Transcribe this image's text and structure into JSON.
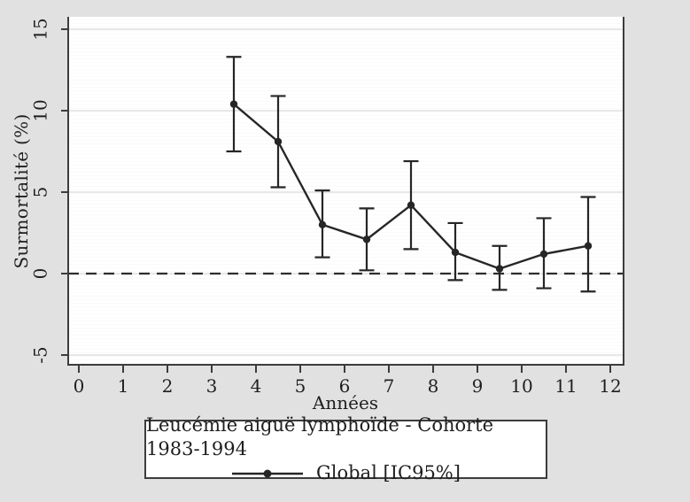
{
  "figure": {
    "background": "#e1e1e1"
  },
  "chart_data": {
    "type": "line",
    "title": "",
    "xlabel": "Années",
    "ylabel": "Surmortalité (%)",
    "x_ticks": [
      0,
      1,
      2,
      3,
      4,
      5,
      6,
      7,
      8,
      9,
      10,
      11,
      12
    ],
    "y_ticks": [
      -5,
      0,
      5,
      10,
      15
    ],
    "xlim": [
      -0.25,
      12.3
    ],
    "ylim": [
      -5.7,
      15.8
    ],
    "grid": true,
    "reference_line_y": 0,
    "legend": {
      "position": "bottom",
      "title": "Leucémie aiguë lymphoïde - Cohorte 1983-1994",
      "series_label": "Global [IC95%]"
    },
    "colors": {
      "line": "#262626",
      "grid": "#d9d9d9",
      "axis": "#3c3c3c",
      "background": "#e1e1e1",
      "plot_background": "#ffffff",
      "text": "#1f1f1f"
    },
    "series": [
      {
        "name": "Global [IC95%]",
        "marker": "filled-circle",
        "points": [
          {
            "x": 3.5,
            "y": 10.4,
            "ci_low": 7.5,
            "ci_high": 13.3
          },
          {
            "x": 4.5,
            "y": 8.1,
            "ci_low": 5.3,
            "ci_high": 10.9
          },
          {
            "x": 5.5,
            "y": 3.0,
            "ci_low": 1.0,
            "ci_high": 5.1
          },
          {
            "x": 6.5,
            "y": 2.1,
            "ci_low": 0.2,
            "ci_high": 4.0
          },
          {
            "x": 7.5,
            "y": 4.2,
            "ci_low": 1.5,
            "ci_high": 6.9
          },
          {
            "x": 8.5,
            "y": 1.3,
            "ci_low": -0.4,
            "ci_high": 3.1
          },
          {
            "x": 9.5,
            "y": 0.3,
            "ci_low": -1.0,
            "ci_high": 1.7
          },
          {
            "x": 10.5,
            "y": 1.2,
            "ci_low": -0.9,
            "ci_high": 3.4
          },
          {
            "x": 11.5,
            "y": 1.7,
            "ci_low": -1.1,
            "ci_high": 4.7
          }
        ]
      }
    ]
  }
}
